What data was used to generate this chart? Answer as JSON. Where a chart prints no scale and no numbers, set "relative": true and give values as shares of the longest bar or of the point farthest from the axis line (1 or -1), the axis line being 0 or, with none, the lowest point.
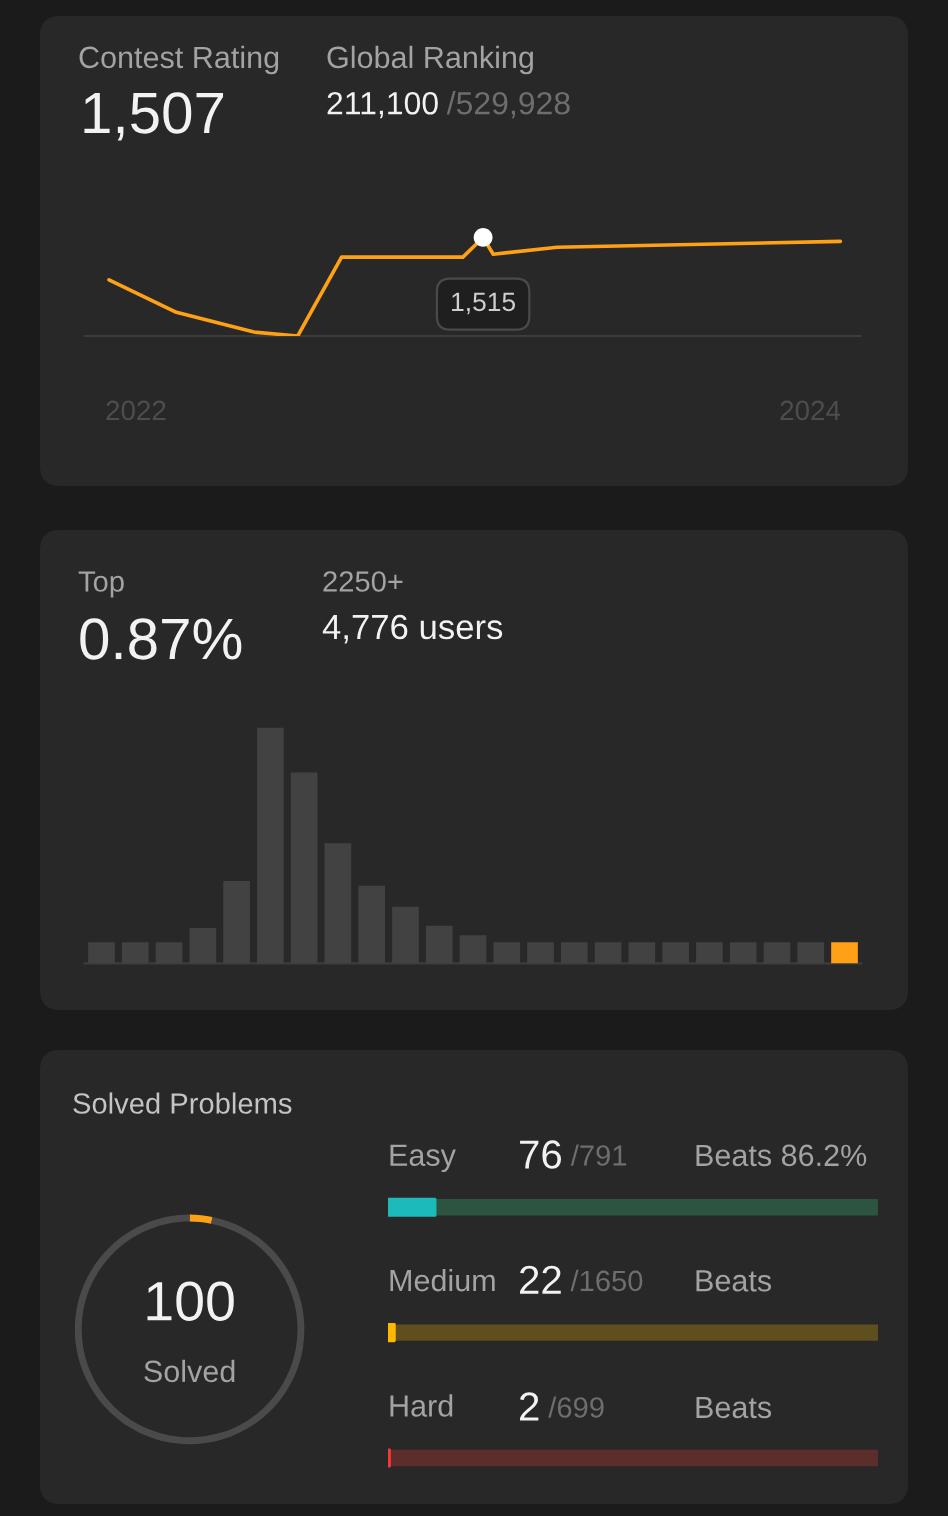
{
  "chart_data": [
    {
      "type": "line",
      "title": "Contest Rating",
      "annotations": [
        "1,507",
        "Global Ranking",
        "211,100",
        "/529,928",
        {
          "text": "1,515",
          "x": 2023.03,
          "y": 1
        }
      ],
      "relative": true,
      "xlim": [
        2021.85,
        2024.15
      ],
      "xticks": [
        2022,
        2024
      ],
      "tick_labels": "x",
      "series": [
        {
          "type": "line",
          "color": "#ffa116",
          "x": [
            2021.92,
            2022.12,
            2022.35,
            2022.48,
            2022.61,
            2022.97,
            2023.03,
            2023.06,
            2023.25,
            2024.09
          ],
          "values": [
            0.57,
            0.24,
            0.04,
            0,
            0.8,
            0.8,
            1,
            0.83,
            0.9,
            0.96
          ]
        },
        {
          "type": "scatter",
          "color": "#ffffff",
          "marker": "circle",
          "x": [
            2023.03
          ],
          "values": [
            1
          ]
        }
      ]
    },
    {
      "type": "bar",
      "title": "Top",
      "annotations": [
        "0.87%",
        "2250+",
        "4,776 users"
      ],
      "relative": true,
      "categories": [
        null,
        null,
        null,
        null,
        null,
        null,
        null,
        null,
        null,
        null,
        null,
        null,
        null,
        null,
        null,
        null,
        null,
        null,
        null,
        null,
        null,
        null,
        null
      ],
      "values": [
        0.09,
        0.09,
        0.09,
        0.15,
        0.35,
        1,
        0.81,
        0.51,
        0.33,
        0.24,
        0.16,
        0.12,
        0.09,
        0.09,
        0.09,
        0.09,
        0.09,
        0.09,
        0.09,
        0.09,
        0.09,
        0.09,
        0.09
      ],
      "colors": [
        "#424242",
        "#424242",
        "#424242",
        "#424242",
        "#424242",
        "#424242",
        "#424242",
        "#424242",
        "#424242",
        "#424242",
        "#424242",
        "#424242",
        "#424242",
        "#424242",
        "#424242",
        "#424242",
        "#424242",
        "#424242",
        "#424242",
        "#424242",
        "#424242",
        "#424242",
        "#ffa116"
      ]
    },
    {
      "type": "donut",
      "title": "Solved Problems",
      "annotations": [
        "100",
        "Solved"
      ],
      "categories": [
        null,
        null
      ],
      "values": [
        3.2,
        96.8
      ],
      "colors": [
        "#ffa116",
        "#4a4a4a"
      ]
    },
    {
      "type": "bar",
      "orientation": "horizontal",
      "stacked": true,
      "relative": true,
      "categories": [
        "Easy",
        "Medium",
        "Hard"
      ],
      "annotations": [
        "76",
        "/791",
        "Beats 86.2%",
        "22",
        "/1650",
        "Beats",
        "2",
        "/699",
        "Beats"
      ],
      "series": [
        {
          "colors": [
            "#1cbaba",
            "#ffb700",
            "#f63737"
          ],
          "values": [
            0.096,
            0.013,
            0.003
          ]
        },
        {
          "colors": [
            "#2b5541",
            "#5f4f1f",
            "#5c2e2b"
          ],
          "values": [
            0.904,
            0.987,
            0.997
          ]
        }
      ]
    }
  ]
}
